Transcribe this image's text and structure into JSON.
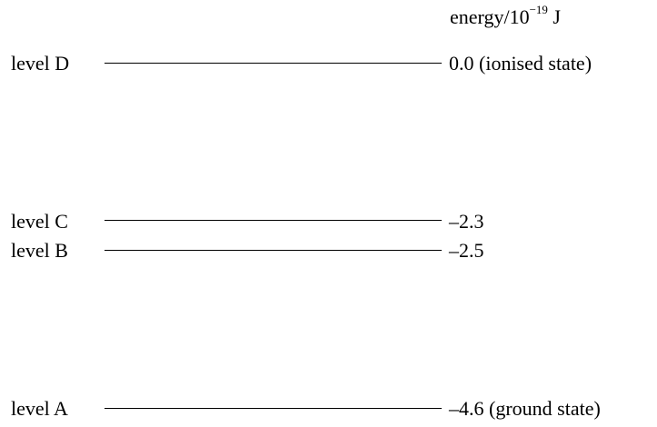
{
  "unit_heading": {
    "quantity": "energy/10",
    "exponent": "−19",
    "unit": " J"
  },
  "levels": [
    {
      "label": "level D",
      "energy": "0.0",
      "note": " (ionised state)"
    },
    {
      "label": "level C",
      "energy": "–2.3",
      "note": ""
    },
    {
      "label": "level B",
      "energy": "–2.5",
      "note": ""
    },
    {
      "label": "level A",
      "energy": "–4.6",
      "note": " (ground state)"
    }
  ]
}
